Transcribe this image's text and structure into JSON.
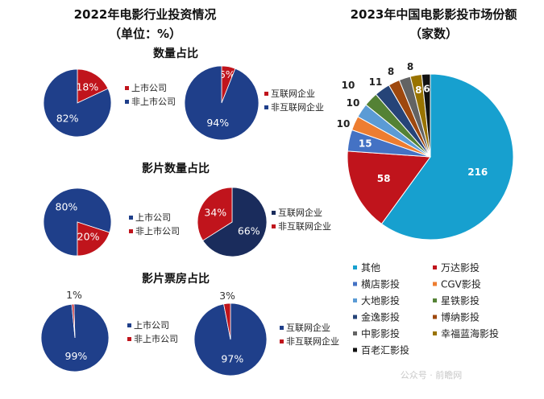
{
  "left_panel": {
    "title": "2022年电影行业投资情况",
    "subtitle": "（单位：%）",
    "sections": [
      {
        "title": "数量占比",
        "pies": [
          {
            "slices": [
              {
                "label": "上市公司",
                "value": 18,
                "text": "18%"
              },
              {
                "label": "非上市公司",
                "value": 82,
                "text": "82%"
              }
            ]
          },
          {
            "slices": [
              {
                "label": "互联网企业",
                "value": 6,
                "text": "6%"
              },
              {
                "label": "非互联网企业",
                "value": 94,
                "text": "94%"
              }
            ]
          }
        ]
      },
      {
        "title": "影片数量占比",
        "pies": [
          {
            "slices": [
              {
                "label": "上市公司",
                "value": 80,
                "text": "80%"
              },
              {
                "label": "非上市公司",
                "value": 20,
                "text": "20%"
              }
            ]
          },
          {
            "slices": [
              {
                "label": "互联网企业",
                "value": 66,
                "text": "66%"
              },
              {
                "label": "非互联网企业",
                "value": 34,
                "text": "34%"
              }
            ]
          }
        ]
      },
      {
        "title": "影片票房占比",
        "pies": [
          {
            "slices": [
              {
                "label": "上市公司",
                "value": 99,
                "text": "99%"
              },
              {
                "label": "非上市公司",
                "value": 1,
                "text": "1%"
              }
            ]
          },
          {
            "slices": [
              {
                "label": "互联网企业",
                "value": 97,
                "text": "97%"
              },
              {
                "label": "非互联网企业",
                "value": 3,
                "text": "3%"
              }
            ]
          }
        ]
      }
    ]
  },
  "chart_data": {
    "type": "pie",
    "title": "2023年中国电影影投市场份额",
    "subtitle": "（家数）",
    "legend_position": "bottom",
    "slices": [
      {
        "name": "其他",
        "value": 216
      },
      {
        "name": "万达影投",
        "value": 58
      },
      {
        "name": "横店影投",
        "value": 15
      },
      {
        "name": "CGV影投",
        "value": 10
      },
      {
        "name": "大地影投",
        "value": 10
      },
      {
        "name": "星铁影投",
        "value": 10
      },
      {
        "name": "金逸影投",
        "value": 11
      },
      {
        "name": "博纳影投",
        "value": 8
      },
      {
        "name": "中影影投",
        "value": 8
      },
      {
        "name": "幸福蓝海影投",
        "value": 8
      },
      {
        "name": "百老汇影投",
        "value": 6
      }
    ]
  },
  "colors": {
    "navy": "#1f3f8a",
    "darknavy": "#1a2c5c",
    "red": "#c0141c",
    "cyan": "#17a0cf",
    "blue": "#4472c4",
    "orange": "#ed7d31",
    "lightblue": "#5b9bd5",
    "green": "#548235",
    "darkblue": "#264478",
    "brown": "#9e480e",
    "gray": "#636363",
    "olive": "#997300",
    "black": "#111111"
  },
  "watermark": "公众号 · 前瞻网"
}
